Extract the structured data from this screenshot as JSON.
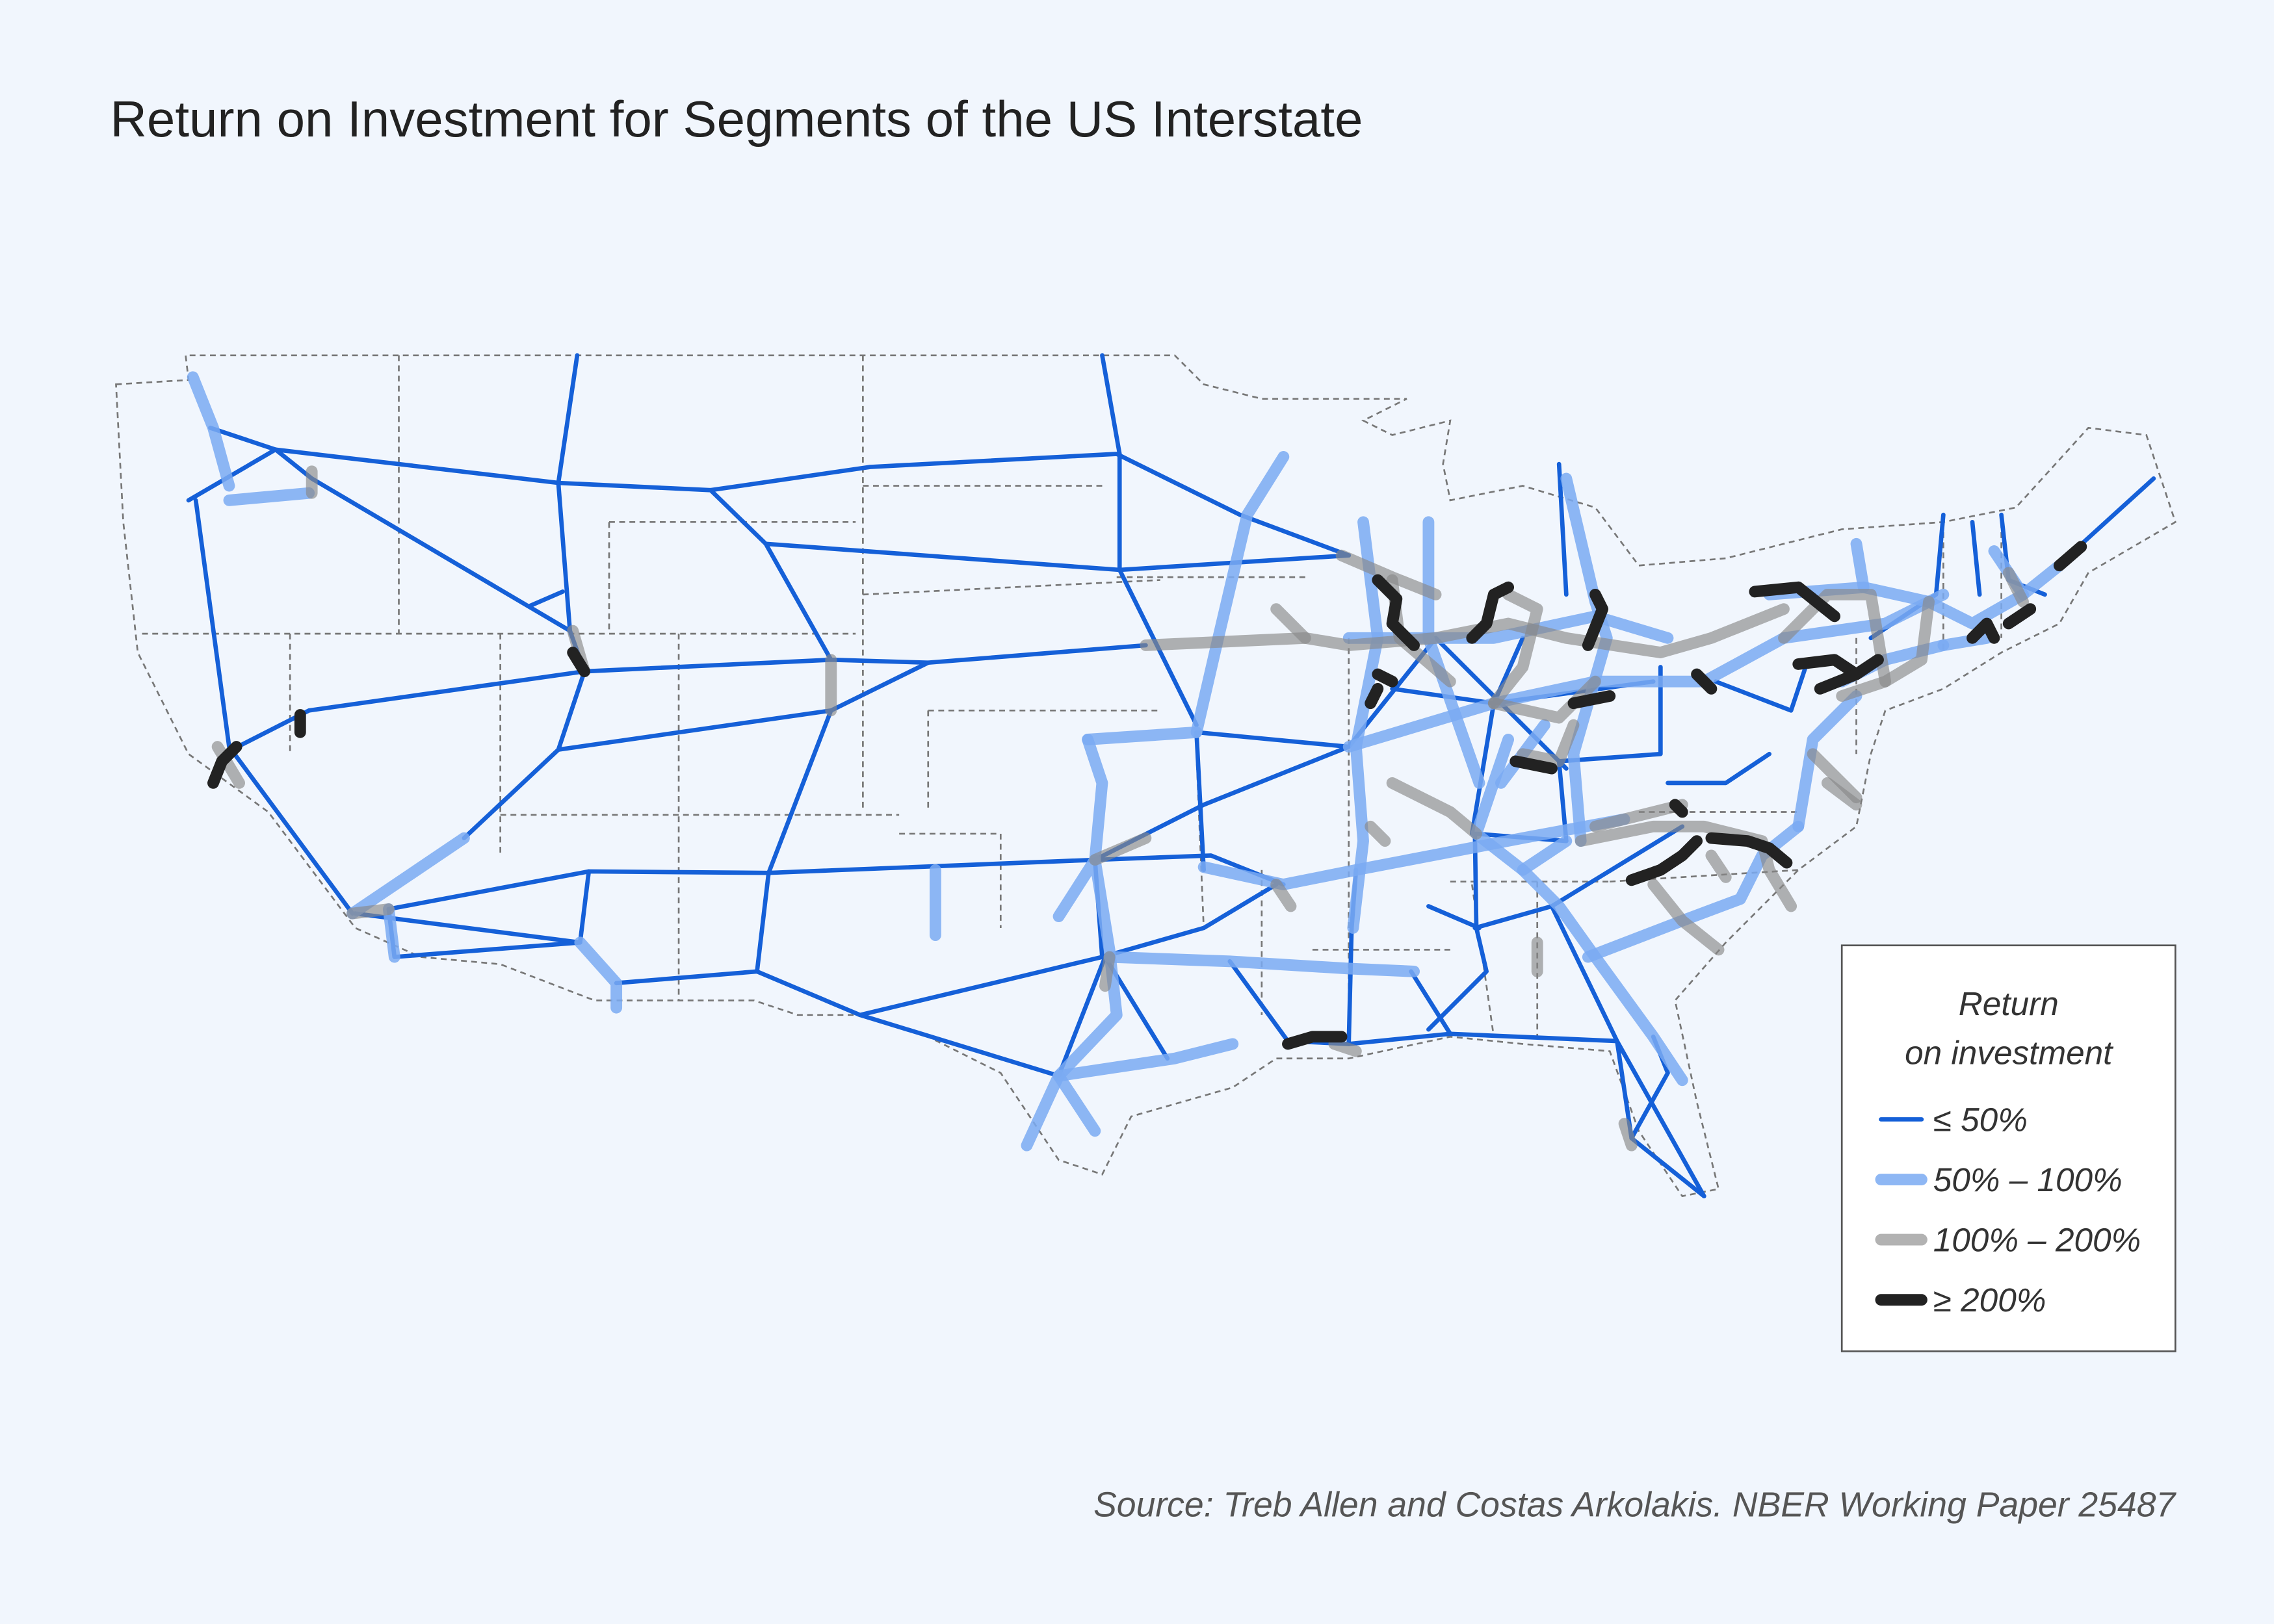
{
  "title": "Return on Investment for Segments of the US Interstate",
  "legend": {
    "title_lines": [
      "Return",
      "on investment"
    ],
    "items": [
      {
        "label": "≤ 50%",
        "color": "#1560d8"
      },
      {
        "label": "50% – 100%",
        "color": "#7aaaf2"
      },
      {
        "label": "100% – 200%",
        "color": "#888888"
      },
      {
        "label": "≥ 200%",
        "color": "#222222"
      }
    ]
  },
  "source": "Source: Treb Allen and Costas Arkolakis. NBER Working Paper 25487"
}
